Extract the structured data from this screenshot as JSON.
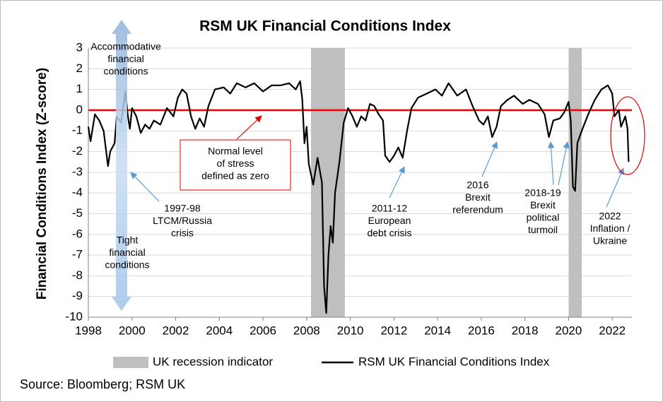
{
  "chart_data": {
    "type": "line",
    "title": "RSM UK Financial Conditions Index",
    "y_label": "Financial Conditions Index (Z-score)",
    "source": "Source: Bloomberg; RSM UK",
    "xlim": [
      1998,
      2022.9
    ],
    "xticks": [
      1998,
      2000,
      2002,
      2004,
      2006,
      2008,
      2010,
      2012,
      2014,
      2016,
      2018,
      2020,
      2022
    ],
    "ylim": [
      -10,
      3
    ],
    "yticks": [
      -10,
      -9,
      -8,
      -7,
      -6,
      -5,
      -4,
      -3,
      -2,
      -1,
      0,
      1,
      2,
      3
    ],
    "grid": true,
    "reference_line": {
      "value": 0,
      "color": "#ff0000"
    },
    "recessions": {
      "name": "UK recession indicator",
      "color": "#bfbfbf",
      "periods": [
        [
          2008.2,
          2009.75
        ],
        [
          2020.0,
          2020.6
        ]
      ]
    },
    "series": [
      {
        "name": "RSM UK Financial Conditions Index",
        "color": "#000000",
        "x": [
          1998.0,
          1998.1,
          1998.3,
          1998.5,
          1998.7,
          1998.9,
          1999.0,
          1999.2,
          1999.3,
          1999.5,
          1999.6,
          1999.7,
          1999.8,
          1999.9,
          2000.0,
          2000.2,
          2000.4,
          2000.6,
          2000.8,
          2001.0,
          2001.3,
          2001.6,
          2001.9,
          2002.1,
          2002.3,
          2002.5,
          2002.7,
          2002.9,
          2003.1,
          2003.3,
          2003.5,
          2003.8,
          2004.2,
          2004.5,
          2004.8,
          2005.2,
          2005.6,
          2006.0,
          2006.4,
          2006.8,
          2007.2,
          2007.5,
          2007.7,
          2007.8,
          2007.9,
          2008.0,
          2008.1,
          2008.3,
          2008.5,
          2008.7,
          2008.8,
          2008.9,
          2009.0,
          2009.1,
          2009.2,
          2009.3,
          2009.5,
          2009.7,
          2009.9,
          2010.1,
          2010.3,
          2010.5,
          2010.7,
          2010.9,
          2011.1,
          2011.3,
          2011.5,
          2011.6,
          2011.8,
          2012.0,
          2012.2,
          2012.4,
          2012.6,
          2012.8,
          2013.1,
          2013.5,
          2013.9,
          2014.2,
          2014.5,
          2014.9,
          2015.3,
          2015.6,
          2015.9,
          2016.1,
          2016.3,
          2016.5,
          2016.7,
          2016.9,
          2017.2,
          2017.5,
          2017.9,
          2018.2,
          2018.6,
          2018.9,
          2019.1,
          2019.3,
          2019.6,
          2019.8,
          2020.0,
          2020.1,
          2020.2,
          2020.3,
          2020.4,
          2020.6,
          2020.9,
          2021.2,
          2021.5,
          2021.8,
          2022.0,
          2022.1,
          2022.3,
          2022.4,
          2022.6,
          2022.7,
          2022.75
        ],
        "values": [
          -0.8,
          -1.5,
          -0.2,
          -0.5,
          -1.0,
          -2.7,
          -2.0,
          -1.6,
          -0.3,
          -0.6,
          0.2,
          0.9,
          -0.2,
          -0.9,
          0.1,
          -0.3,
          -1.1,
          -0.7,
          -0.9,
          -0.5,
          -0.7,
          0.1,
          -0.3,
          0.6,
          1.0,
          0.8,
          -0.3,
          -0.9,
          -0.4,
          -0.8,
          0.2,
          1.0,
          1.1,
          0.8,
          1.3,
          1.1,
          1.3,
          0.9,
          1.2,
          1.2,
          1.3,
          1.0,
          1.4,
          0.5,
          -1.6,
          -0.8,
          -2.6,
          -3.6,
          -2.3,
          -3.5,
          -8.5,
          -9.8,
          -7.0,
          -5.6,
          -6.4,
          -4.0,
          -2.5,
          -0.6,
          0.1,
          -0.3,
          -0.8,
          -0.3,
          -0.5,
          0.3,
          0.2,
          -0.2,
          -0.5,
          -2.2,
          -2.5,
          -2.2,
          -1.8,
          -2.3,
          -1.0,
          0.1,
          0.6,
          0.8,
          1.0,
          0.7,
          1.3,
          0.7,
          1.0,
          0.2,
          -0.5,
          -0.7,
          -0.3,
          -1.3,
          -0.8,
          0.2,
          0.5,
          0.7,
          0.3,
          0.5,
          0.3,
          -0.2,
          -1.3,
          -0.5,
          -0.4,
          -0.1,
          0.4,
          -0.5,
          -3.7,
          -3.9,
          -1.6,
          -1.0,
          -0.2,
          0.5,
          1.0,
          1.2,
          0.8,
          -0.3,
          0.0,
          -0.8,
          -0.3,
          -0.9,
          -2.5
        ]
      }
    ],
    "annotations": [
      {
        "lines": [
          "Accommodative",
          "financial",
          "conditions"
        ]
      },
      {
        "lines": [
          "Tight",
          "financial",
          "conditions"
        ]
      },
      {
        "lines": [
          "1997-98",
          "LTCM/Russia",
          "crisis"
        ]
      },
      {
        "lines": [
          "Normal level",
          "of stress",
          "defined as zero"
        ]
      },
      {
        "lines": [
          "2011-12",
          "European",
          "debt crisis"
        ]
      },
      {
        "lines": [
          "2016",
          "Brexit",
          "referendum"
        ]
      },
      {
        "lines": [
          "2018-19",
          "Brexit",
          "political",
          "turmoil"
        ]
      },
      {
        "lines": [
          "2022",
          "Inflation /",
          "Ukraine"
        ]
      }
    ]
  }
}
